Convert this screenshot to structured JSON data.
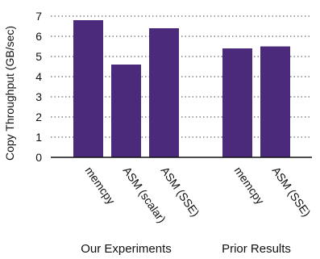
{
  "chart_data": {
    "type": "bar",
    "ylabel": "Copy Throughput (GB/sec)",
    "ylim": [
      0,
      7
    ],
    "yticks": [
      "0",
      "1",
      "2",
      "3",
      "4",
      "5",
      "6",
      "7"
    ],
    "grid": "horizontal dotted",
    "bar_color": "#4b2a7b",
    "groups": [
      {
        "label": "Our Experiments",
        "categories": [
          "memcpy",
          "ASM (scalar)",
          "ASM (SSE)"
        ],
        "values": [
          6.8,
          4.6,
          6.4
        ]
      },
      {
        "label": "Prior Results",
        "categories": [
          "memcpy",
          "ASM (SSE)"
        ],
        "values": [
          5.4,
          5.5
        ]
      }
    ]
  }
}
